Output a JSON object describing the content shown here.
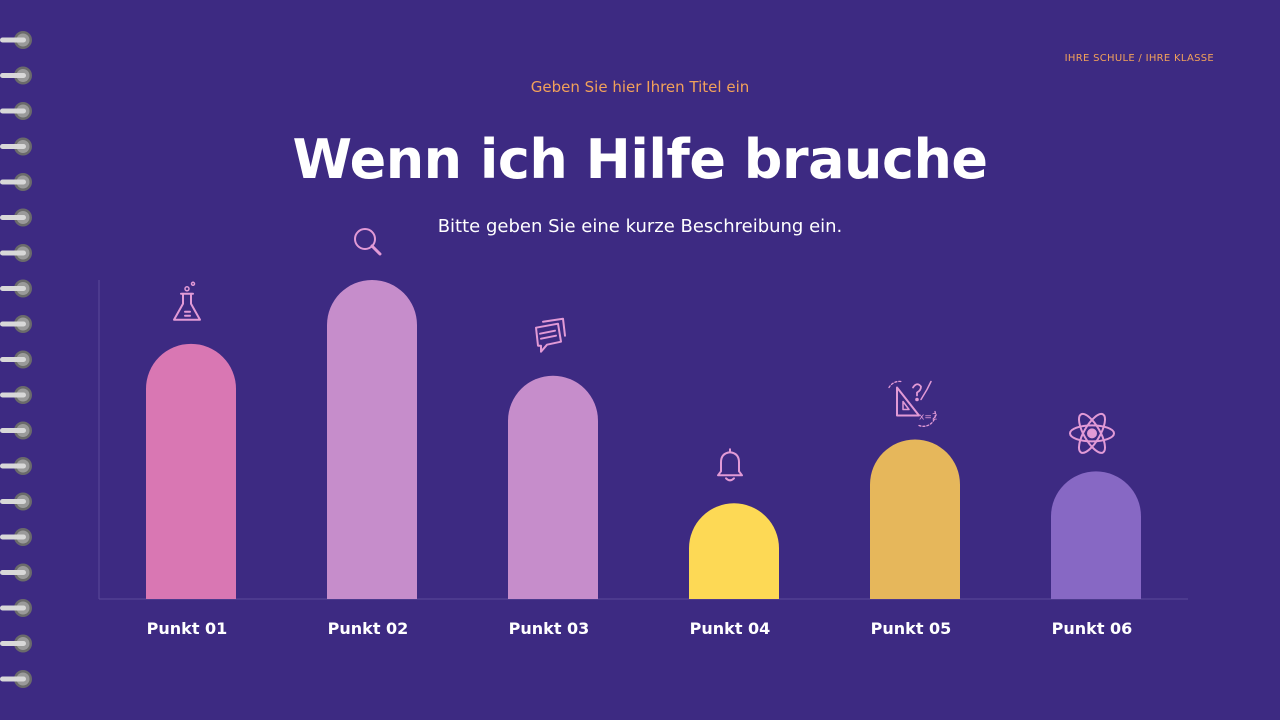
{
  "header": {
    "school_label": "IHRE SCHULE / IHRE KLASSE",
    "title_placeholder": "Geben Sie hier Ihren Titel ein",
    "main_title": "Wenn ich Hilfe brauche",
    "description": "Bitte geben Sie eine kurze Beschreibung ein."
  },
  "colors": {
    "background": "#3d2a82",
    "accent": "#f2a15a",
    "icon": "#e29ad6"
  },
  "chart_data": {
    "type": "bar",
    "categories": [
      "Punkt 01",
      "Punkt 02",
      "Punkt 03",
      "Punkt 04",
      "Punkt 05",
      "Punkt 06"
    ],
    "values": [
      80,
      100,
      70,
      30,
      50,
      40
    ],
    "ylim": [
      0,
      100
    ],
    "grid": false,
    "bar_colors": [
      "#d977b3",
      "#c68dcb",
      "#c68dcb",
      "#fdd955",
      "#e6b75b",
      "#8768c4"
    ],
    "icons": [
      "flask-icon",
      "magnifier-icon",
      "chat-icon",
      "bell-icon",
      "geometry-icon",
      "atom-icon"
    ]
  }
}
